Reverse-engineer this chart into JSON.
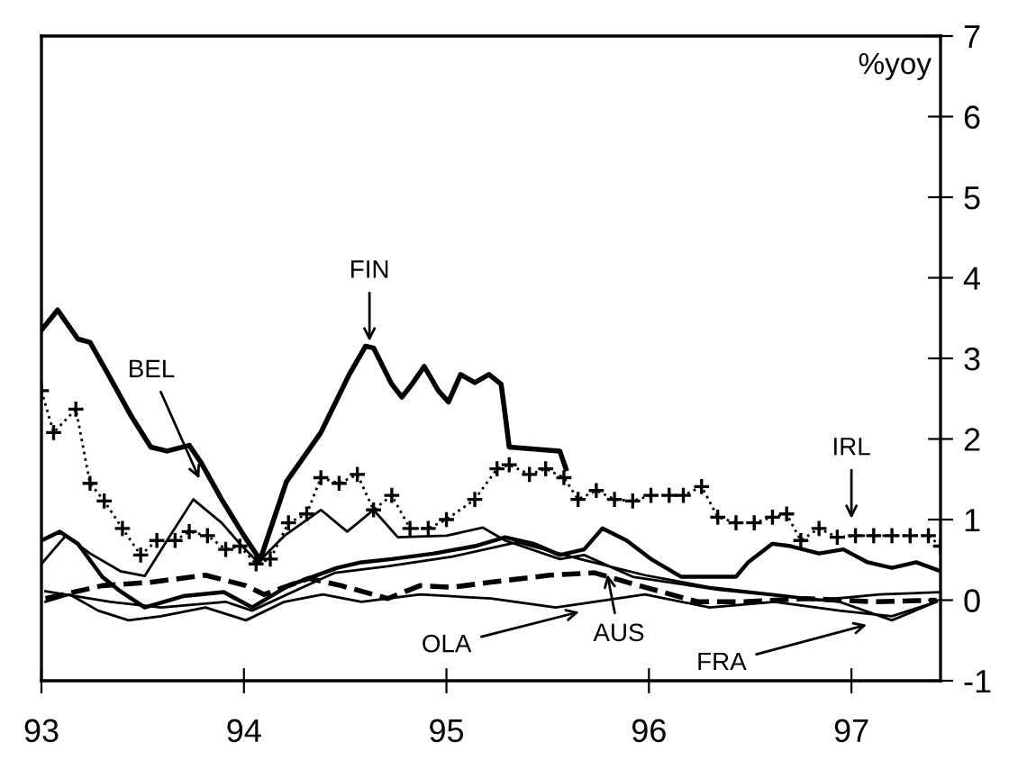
{
  "chart_data": {
    "type": "line",
    "ylabel": "%yoy",
    "xlim": [
      93,
      97.44
    ],
    "xticks": [
      93,
      94,
      95,
      96,
      97
    ],
    "ylim": [
      -1,
      7
    ],
    "yticks": [
      -1,
      0,
      1,
      2,
      3,
      4,
      5,
      6,
      7
    ],
    "grid": false,
    "series": [
      {
        "color": "#000000",
        "x": [
          93.0,
          93.08,
          93.18,
          93.24,
          93.33,
          93.44,
          93.54,
          93.62,
          93.73,
          93.79,
          93.89,
          94.0,
          94.08,
          94.21,
          94.38,
          94.52,
          94.6,
          94.64,
          94.73,
          94.78,
          94.83,
          94.89,
          94.96,
          95.01,
          95.07,
          95.14,
          95.21,
          95.27,
          95.29,
          95.31,
          95.56,
          95.59
        ],
        "values": [
          3.35,
          3.6,
          3.24,
          3.2,
          2.8,
          2.3,
          1.9,
          1.85,
          1.92,
          1.7,
          1.25,
          0.8,
          0.5,
          1.47,
          2.08,
          2.8,
          3.15,
          3.13,
          2.68,
          2.52,
          2.68,
          2.9,
          2.6,
          2.46,
          2.8,
          2.7,
          2.8,
          2.68,
          2.3,
          1.9,
          1.85,
          1.63
        ]
      },
      {
        "color": "#000000",
        "marker": "cross",
        "line_style": "dotted",
        "x": [
          93.0,
          93.06,
          93.17,
          93.24,
          93.31,
          93.4,
          93.49,
          93.57,
          93.66,
          93.73,
          93.82,
          93.91,
          93.98,
          94.06,
          94.13,
          94.22,
          94.31,
          94.38,
          94.47,
          94.56,
          94.64,
          94.73,
          94.82,
          94.91,
          95.0,
          95.14,
          95.25,
          95.31,
          95.41,
          95.49,
          95.58,
          95.65,
          95.74,
          95.83,
          95.92,
          96.01,
          96.1,
          96.17,
          96.26,
          96.34,
          96.43,
          96.52,
          96.61,
          96.68,
          96.75,
          96.84,
          96.93,
          97.02,
          97.11,
          97.2,
          97.29,
          97.38,
          97.44
        ],
        "values": [
          2.6,
          2.08,
          2.37,
          1.45,
          1.23,
          0.89,
          0.56,
          0.74,
          0.74,
          0.85,
          0.8,
          0.63,
          0.67,
          0.45,
          0.51,
          0.96,
          1.07,
          1.52,
          1.45,
          1.56,
          1.12,
          1.3,
          0.89,
          0.89,
          1.0,
          1.25,
          1.63,
          1.68,
          1.56,
          1.63,
          1.52,
          1.25,
          1.36,
          1.25,
          1.23,
          1.3,
          1.3,
          1.3,
          1.41,
          1.03,
          0.96,
          0.96,
          1.03,
          1.07,
          0.74,
          0.89,
          0.78,
          0.8,
          0.8,
          0.8,
          0.8,
          0.8,
          0.67
        ]
      },
      {
        "color": "#000000",
        "x": [
          93.0,
          93.12,
          93.24,
          93.39,
          93.51,
          93.62,
          93.75,
          93.89,
          93.98,
          94.07,
          94.2,
          94.38,
          94.51,
          94.64,
          94.76,
          95.0,
          95.18,
          95.29,
          95.56,
          95.68,
          95.92,
          96.34,
          96.57,
          96.84,
          97.14,
          97.44
        ],
        "values": [
          0.45,
          0.8,
          0.58,
          0.36,
          0.3,
          0.74,
          1.25,
          0.96,
          0.7,
          0.47,
          0.8,
          1.12,
          0.85,
          1.12,
          0.78,
          0.8,
          0.9,
          0.74,
          0.51,
          0.56,
          0.29,
          0.13,
          0.07,
          0.0,
          0.07,
          0.1
        ]
      },
      {
        "color": "#000000",
        "x": [
          93.0,
          93.09,
          93.18,
          93.3,
          93.39,
          93.51,
          93.7,
          93.9,
          94.04,
          94.22,
          94.46,
          94.58,
          94.73,
          94.94,
          95.14,
          95.29,
          95.43,
          95.56,
          95.68,
          95.77,
          95.89,
          96.01,
          96.16,
          96.34,
          96.43,
          96.49,
          96.61,
          96.7,
          96.84,
          96.96,
          97.08,
          97.2,
          97.32,
          97.44
        ],
        "values": [
          0.74,
          0.85,
          0.7,
          0.29,
          0.11,
          -0.09,
          0.05,
          0.1,
          -0.09,
          0.18,
          0.4,
          0.47,
          0.51,
          0.58,
          0.67,
          0.78,
          0.7,
          0.56,
          0.63,
          0.89,
          0.74,
          0.51,
          0.29,
          0.29,
          0.29,
          0.47,
          0.7,
          0.67,
          0.58,
          0.63,
          0.47,
          0.4,
          0.47,
          0.36
        ]
      },
      {
        "color": "#000000",
        "x": [
          93.02,
          93.14,
          93.28,
          93.43,
          93.59,
          93.81,
          94.01,
          94.2,
          94.39,
          94.58,
          94.87,
          95.22,
          95.54,
          95.73,
          95.98,
          96.3,
          96.62,
          96.94,
          97.2,
          97.42
        ],
        "values": [
          -0.02,
          0.07,
          -0.13,
          -0.25,
          -0.2,
          -0.09,
          -0.25,
          -0.02,
          0.07,
          -0.02,
          0.07,
          0.02,
          -0.09,
          -0.02,
          0.07,
          -0.09,
          -0.02,
          -0.13,
          -0.2,
          -0.02
        ]
      },
      {
        "color": "#000000",
        "line_style": "dashed",
        "x": [
          93.02,
          93.3,
          93.53,
          93.81,
          94.01,
          94.1,
          94.32,
          94.48,
          94.71,
          94.87,
          95.03,
          95.21,
          95.51,
          95.73,
          95.98,
          96.24,
          96.47,
          96.78,
          97.1,
          97.42
        ],
        "values": [
          0.02,
          0.18,
          0.22,
          0.31,
          0.18,
          0.07,
          0.27,
          0.18,
          0.02,
          0.18,
          0.16,
          0.22,
          0.31,
          0.34,
          0.16,
          -0.02,
          -0.02,
          0.02,
          -0.02,
          0.0
        ]
      },
      {
        "color": "#000000",
        "x": [
          93.02,
          93.34,
          93.59,
          93.91,
          94.04,
          94.29,
          94.45,
          94.71,
          95.03,
          95.35,
          95.66,
          95.98,
          96.3,
          96.62,
          96.94,
          97.2,
          97.42
        ],
        "values": [
          0.11,
          -0.02,
          -0.09,
          -0.02,
          -0.13,
          0.16,
          0.34,
          0.42,
          0.54,
          0.72,
          0.51,
          0.31,
          0.16,
          0.07,
          -0.02,
          -0.25,
          -0.02
        ]
      }
    ],
    "annotations": [
      {
        "text": "FIN",
        "x": 94.62,
        "y": 3.15
      },
      {
        "text": "BEL",
        "x": 93.79,
        "y": 1.45
      },
      {
        "text": "IRL",
        "x": 97.0,
        "y": 0.95
      },
      {
        "text": "OLA",
        "x": 95.68,
        "y": -0.13
      },
      {
        "text": "AUS",
        "x": 95.79,
        "y": 0.38
      },
      {
        "text": "FRA",
        "x": 97.1,
        "y": -0.29
      }
    ]
  }
}
